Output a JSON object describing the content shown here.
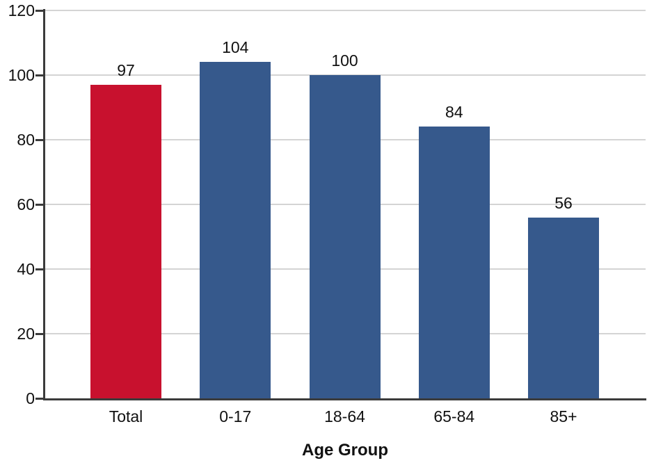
{
  "chart_data": {
    "type": "bar",
    "title": "",
    "xlabel": "Age Group",
    "ylabel": "",
    "categories": [
      "Total",
      "0-17",
      "18-64",
      "65-84",
      "85+"
    ],
    "values": [
      97,
      104,
      100,
      84,
      56
    ],
    "value_labels": [
      "97",
      "104",
      "100",
      "84",
      "56"
    ],
    "bar_colors": [
      "#c8112e",
      "#36598c",
      "#36598c",
      "#36598c",
      "#36598c"
    ],
    "ylim": [
      0,
      120
    ],
    "yticks": [
      0,
      20,
      40,
      60,
      80,
      100,
      120
    ],
    "grid": true,
    "legend": false,
    "value_labels_shown": true
  },
  "colors": {
    "accent_red": "#c8112e",
    "accent_blue": "#36598c",
    "gridline": "#d4d4d4",
    "axis": "#3b3b3b",
    "text": "#111111",
    "background": "#ffffff"
  }
}
